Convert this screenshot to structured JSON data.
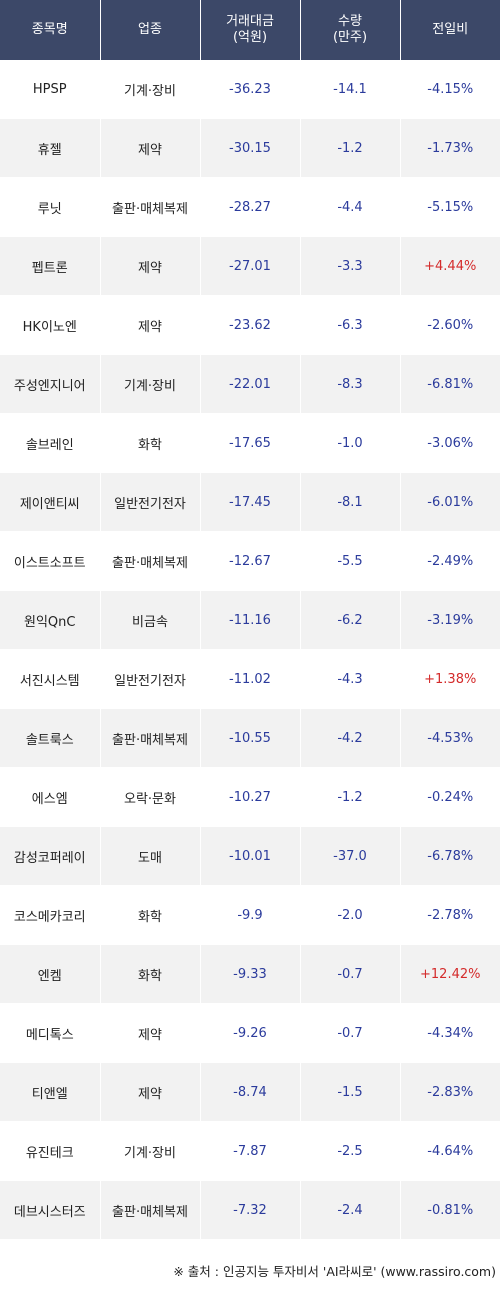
{
  "header": {
    "name": "종목명",
    "industry": "업종",
    "amount_line1": "거래대금",
    "amount_line2": "(억원)",
    "volume_line1": "수량",
    "volume_line2": "(만주)",
    "change": "전일비"
  },
  "colors": {
    "header_bg": "#3c4868",
    "negative": "#2b3b9c",
    "positive": "#d42b2b"
  },
  "rows": [
    {
      "name": "HPSP",
      "industry": "기계·장비",
      "amount": "-36.23",
      "volume": "-14.1",
      "change": "-4.15%"
    },
    {
      "name": "휴젤",
      "industry": "제약",
      "amount": "-30.15",
      "volume": "-1.2",
      "change": "-1.73%"
    },
    {
      "name": "루닛",
      "industry": "출판·매체복제",
      "amount": "-28.27",
      "volume": "-4.4",
      "change": "-5.15%"
    },
    {
      "name": "펩트론",
      "industry": "제약",
      "amount": "-27.01",
      "volume": "-3.3",
      "change": "+4.44%"
    },
    {
      "name": "HK이노엔",
      "industry": "제약",
      "amount": "-23.62",
      "volume": "-6.3",
      "change": "-2.60%"
    },
    {
      "name": "주성엔지니어",
      "industry": "기계·장비",
      "amount": "-22.01",
      "volume": "-8.3",
      "change": "-6.81%"
    },
    {
      "name": "솔브레인",
      "industry": "화학",
      "amount": "-17.65",
      "volume": "-1.0",
      "change": "-3.06%"
    },
    {
      "name": "제이앤티씨",
      "industry": "일반전기전자",
      "amount": "-17.45",
      "volume": "-8.1",
      "change": "-6.01%"
    },
    {
      "name": "이스트소프트",
      "industry": "출판·매체복제",
      "amount": "-12.67",
      "volume": "-5.5",
      "change": "-2.49%"
    },
    {
      "name": "원익QnC",
      "industry": "비금속",
      "amount": "-11.16",
      "volume": "-6.2",
      "change": "-3.19%"
    },
    {
      "name": "서진시스템",
      "industry": "일반전기전자",
      "amount": "-11.02",
      "volume": "-4.3",
      "change": "+1.38%"
    },
    {
      "name": "솔트룩스",
      "industry": "출판·매체복제",
      "amount": "-10.55",
      "volume": "-4.2",
      "change": "-4.53%"
    },
    {
      "name": "에스엠",
      "industry": "오락·문화",
      "amount": "-10.27",
      "volume": "-1.2",
      "change": "-0.24%"
    },
    {
      "name": "감성코퍼레이",
      "industry": "도매",
      "amount": "-10.01",
      "volume": "-37.0",
      "change": "-6.78%"
    },
    {
      "name": "코스메카코리",
      "industry": "화학",
      "amount": "-9.9",
      "volume": "-2.0",
      "change": "-2.78%"
    },
    {
      "name": "엔켐",
      "industry": "화학",
      "amount": "-9.33",
      "volume": "-0.7",
      "change": "+12.42%"
    },
    {
      "name": "메디톡스",
      "industry": "제약",
      "amount": "-9.26",
      "volume": "-0.7",
      "change": "-4.34%"
    },
    {
      "name": "티앤엘",
      "industry": "제약",
      "amount": "-8.74",
      "volume": "-1.5",
      "change": "-2.83%"
    },
    {
      "name": "유진테크",
      "industry": "기계·장비",
      "amount": "-7.87",
      "volume": "-2.5",
      "change": "-4.64%"
    },
    {
      "name": "데브시스터즈",
      "industry": "출판·매체복제",
      "amount": "-7.32",
      "volume": "-2.4",
      "change": "-0.81%"
    }
  ],
  "footer": "※ 출처 : 인공지능 투자비서 'AI라씨로' (www.rassiro.com)"
}
